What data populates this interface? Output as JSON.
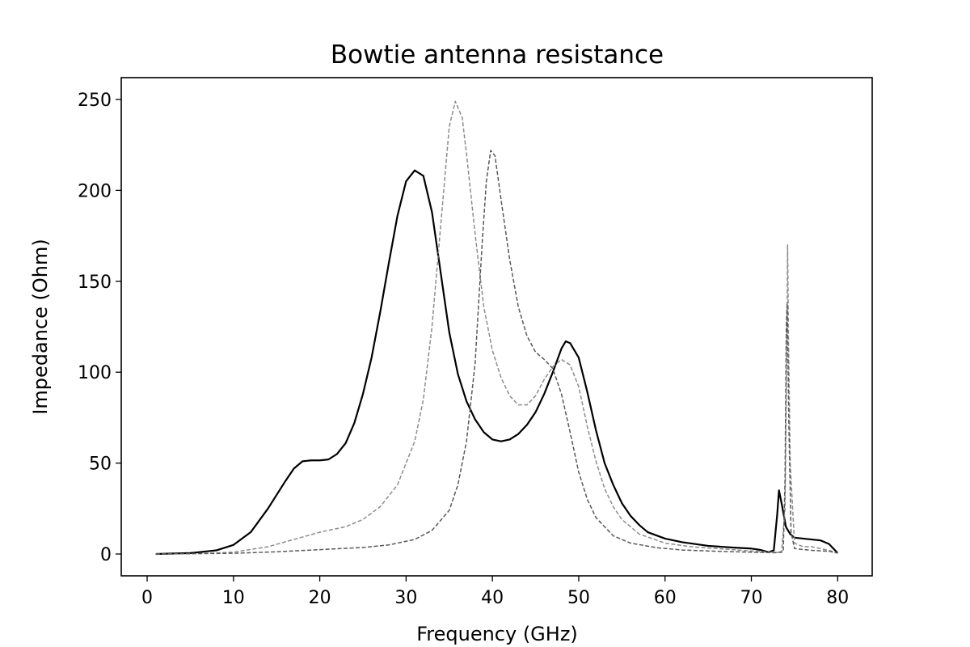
{
  "chart_data": {
    "type": "line",
    "title": "Bowtie antenna resistance",
    "xlabel": "Frequency (GHz)",
    "ylabel": "Impedance (Ohm)",
    "xlim": [
      -3,
      84
    ],
    "ylim": [
      -12,
      262
    ],
    "xticks": [
      0,
      10,
      20,
      30,
      40,
      50,
      60,
      70,
      80
    ],
    "yticks": [
      0,
      50,
      100,
      150,
      200,
      250
    ],
    "grid": false,
    "legend": "none",
    "series": [
      {
        "color": "#000000",
        "style": "solid",
        "points": [
          [
            1,
            0
          ],
          [
            5,
            0.5
          ],
          [
            8,
            2
          ],
          [
            10,
            5
          ],
          [
            12,
            12
          ],
          [
            14,
            25
          ],
          [
            16,
            40
          ],
          [
            17,
            47
          ],
          [
            18,
            51
          ],
          [
            19,
            51.5
          ],
          [
            20,
            51.5
          ],
          [
            21,
            52
          ],
          [
            22,
            55
          ],
          [
            23,
            61
          ],
          [
            24,
            72
          ],
          [
            25,
            88
          ],
          [
            26,
            108
          ],
          [
            27,
            133
          ],
          [
            28,
            160
          ],
          [
            29,
            186
          ],
          [
            30,
            205
          ],
          [
            31,
            211
          ],
          [
            32,
            208
          ],
          [
            33,
            188
          ],
          [
            34,
            155
          ],
          [
            35,
            122
          ],
          [
            36,
            99
          ],
          [
            37,
            84
          ],
          [
            38,
            74
          ],
          [
            39,
            67
          ],
          [
            40,
            63
          ],
          [
            41,
            62
          ],
          [
            42,
            63
          ],
          [
            43,
            66
          ],
          [
            44,
            71
          ],
          [
            45,
            78
          ],
          [
            46,
            88
          ],
          [
            47,
            100
          ],
          [
            48,
            113
          ],
          [
            48.5,
            117
          ],
          [
            49,
            116
          ],
          [
            50,
            108
          ],
          [
            51,
            89
          ],
          [
            52,
            68
          ],
          [
            53,
            50
          ],
          [
            54,
            38
          ],
          [
            55,
            28
          ],
          [
            56,
            21
          ],
          [
            57,
            16
          ],
          [
            58,
            12
          ],
          [
            60,
            8.5
          ],
          [
            62,
            6.5
          ],
          [
            65,
            4.5
          ],
          [
            68,
            3.5
          ],
          [
            70,
            3
          ],
          [
            71,
            2.3
          ],
          [
            72,
            1
          ],
          [
            72.6,
            2
          ],
          [
            73,
            22
          ],
          [
            73.2,
            35
          ],
          [
            73.5,
            28
          ],
          [
            74,
            15
          ],
          [
            74.5,
            11
          ],
          [
            75,
            9
          ],
          [
            76,
            8.5
          ],
          [
            77,
            8
          ],
          [
            78,
            7.5
          ],
          [
            79,
            5.5
          ],
          [
            80,
            0.5
          ]
        ]
      },
      {
        "color": "#8c8c8c",
        "style": "dashed",
        "points": [
          [
            1,
            0
          ],
          [
            6,
            0.2
          ],
          [
            10,
            1
          ],
          [
            14,
            4
          ],
          [
            17,
            8
          ],
          [
            20,
            12
          ],
          [
            23,
            15
          ],
          [
            25,
            19
          ],
          [
            27,
            26
          ],
          [
            29,
            38
          ],
          [
            31,
            62
          ],
          [
            32,
            85
          ],
          [
            33,
            125
          ],
          [
            34,
            180
          ],
          [
            35,
            235
          ],
          [
            35.7,
            249
          ],
          [
            36.5,
            240
          ],
          [
            37,
            220
          ],
          [
            38,
            176
          ],
          [
            39,
            136
          ],
          [
            40,
            112
          ],
          [
            41,
            97
          ],
          [
            42,
            87
          ],
          [
            43,
            82
          ],
          [
            44,
            82
          ],
          [
            45,
            87
          ],
          [
            46,
            96
          ],
          [
            47,
            103
          ],
          [
            48,
            107
          ],
          [
            49,
            104
          ],
          [
            50,
            92
          ],
          [
            51,
            70
          ],
          [
            52,
            51
          ],
          [
            53,
            36
          ],
          [
            54,
            26
          ],
          [
            55,
            19
          ],
          [
            57,
            11
          ],
          [
            60,
            6
          ],
          [
            63,
            4
          ],
          [
            66,
            3
          ],
          [
            69,
            2
          ],
          [
            72,
            1
          ],
          [
            73.5,
            0.8
          ],
          [
            73.9,
            25
          ],
          [
            74.1,
            110
          ],
          [
            74.2,
            170
          ],
          [
            74.3,
            120
          ],
          [
            74.5,
            50
          ],
          [
            75,
            6
          ],
          [
            76,
            4
          ],
          [
            77,
            4
          ],
          [
            79,
            2
          ],
          [
            80,
            0.5
          ]
        ]
      },
      {
        "color": "#595959",
        "style": "dashed",
        "points": [
          [
            1,
            0
          ],
          [
            10,
            0.4
          ],
          [
            15,
            1.2
          ],
          [
            20,
            2.4
          ],
          [
            25,
            3.6
          ],
          [
            28,
            5
          ],
          [
            31,
            8
          ],
          [
            33,
            13
          ],
          [
            35,
            24
          ],
          [
            36,
            38
          ],
          [
            37,
            62
          ],
          [
            38,
            105
          ],
          [
            38.8,
            170
          ],
          [
            39.3,
            205
          ],
          [
            39.8,
            222
          ],
          [
            40.3,
            219
          ],
          [
            41,
            195
          ],
          [
            42,
            162
          ],
          [
            43,
            136
          ],
          [
            44,
            120
          ],
          [
            45,
            111
          ],
          [
            46,
            107
          ],
          [
            47,
            102
          ],
          [
            48,
            88
          ],
          [
            49,
            67
          ],
          [
            50,
            45
          ],
          [
            51,
            30
          ],
          [
            52,
            20
          ],
          [
            54,
            10
          ],
          [
            56,
            6
          ],
          [
            59,
            3.5
          ],
          [
            62,
            2.2
          ],
          [
            66,
            1.5
          ],
          [
            70,
            1
          ],
          [
            73,
            0.7
          ],
          [
            73.7,
            1.5
          ],
          [
            73.9,
            40
          ],
          [
            74.05,
            125
          ],
          [
            74.15,
            138
          ],
          [
            74.35,
            70
          ],
          [
            74.6,
            12
          ],
          [
            75,
            3
          ],
          [
            77,
            2
          ],
          [
            79,
            1.5
          ],
          [
            80,
            0.5
          ]
        ]
      }
    ]
  }
}
